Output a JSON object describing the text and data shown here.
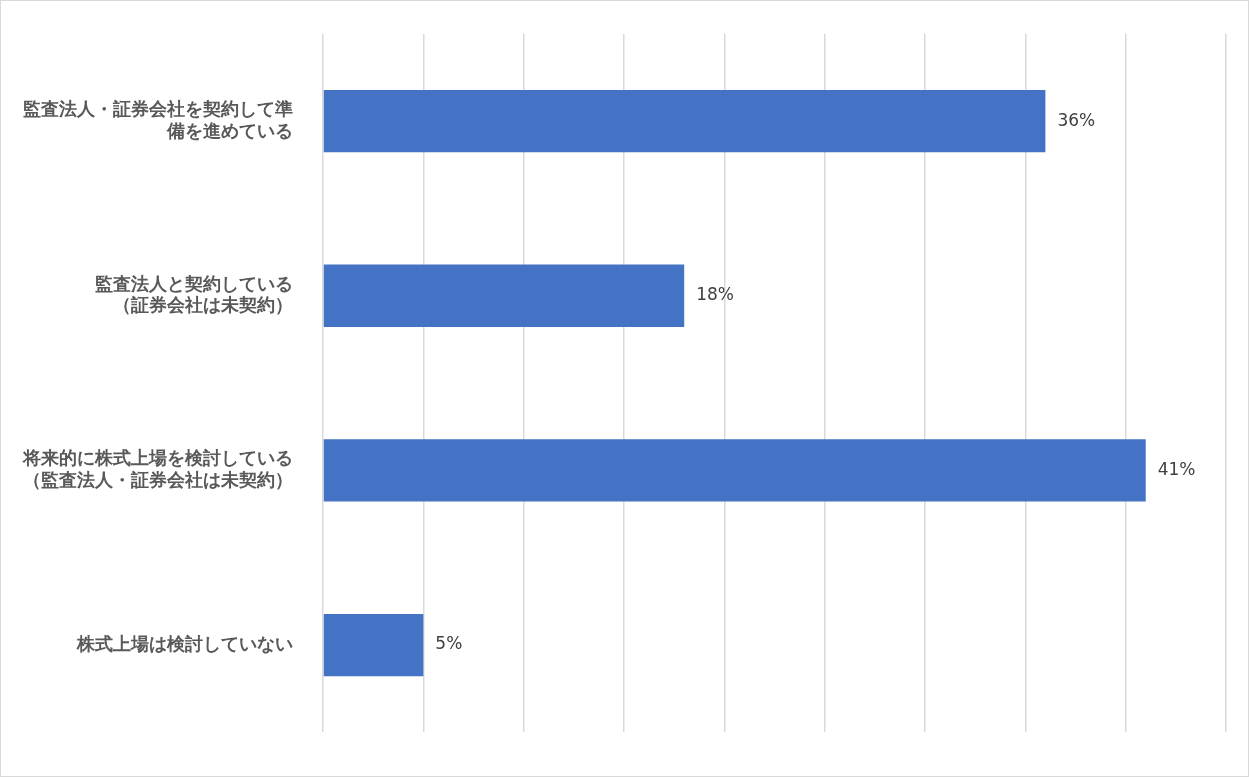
{
  "chart_data": {
    "type": "bar",
    "orientation": "horizontal",
    "categories": [
      "監査法人・証券会社を契約して準備を進めている",
      "監査法人と契約している（証券会社は未契約）",
      "将来的に株式上場を検討している（監査法人・証券会社は未契約）",
      "株式上場は検討していない"
    ],
    "values": [
      36,
      18,
      41,
      5
    ],
    "value_labels": [
      "36%",
      "18%",
      "41%",
      "5%"
    ],
    "color": "#4472c4",
    "xlim": [
      0,
      45
    ],
    "xticks": [
      {
        "value": 0,
        "label": null
      },
      {
        "value": 5,
        "label": null
      },
      {
        "value": 10,
        "label": null
      },
      {
        "value": 15,
        "label": null
      },
      {
        "value": 20,
        "label": null
      },
      {
        "value": 25,
        "label": null
      },
      {
        "value": 30,
        "label": null
      },
      {
        "value": 35,
        "label": null
      },
      {
        "value": 40,
        "label": null
      },
      {
        "value": 45,
        "label": null
      }
    ],
    "grid": "x",
    "tick_labels": "y",
    "legend": false
  }
}
